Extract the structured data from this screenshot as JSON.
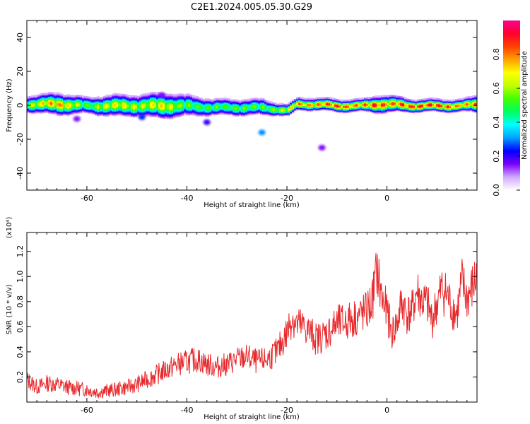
{
  "title": "C2E1.2024.005.05.30.G29",
  "colorbar": {
    "label": "Normalized spectral amplitude",
    "range": [
      0,
      1
    ],
    "ticks": [
      "0.0",
      "0.2",
      "0.4",
      "0.6",
      "0.8"
    ],
    "tick_values": [
      0.0,
      0.2,
      0.4,
      0.6,
      0.8
    ],
    "colors": [
      "#ffffff",
      "#d0a8ff",
      "#7a00ff",
      "#0000ff",
      "#00a0ff",
      "#00ffff",
      "#00ff60",
      "#40ff00",
      "#c0ff00",
      "#ffff00",
      "#ffa000",
      "#ff4000",
      "#ff0030",
      "#ff0090"
    ]
  },
  "chart_data": [
    {
      "type": "heatmap",
      "title": "C2E1.2024.005.05.30.G29",
      "xlabel": "Height of straight line (km)",
      "ylabel": "Frequency (Hz)",
      "xlim": [
        -72,
        18
      ],
      "ylim": [
        -50,
        50
      ],
      "x_ticks": [
        -60,
        -40,
        -20,
        0
      ],
      "x_tick_labels": [
        "-60",
        "-40",
        "-20",
        "0"
      ],
      "y_ticks": [
        -40,
        -20,
        0,
        20,
        40
      ],
      "y_tick_labels": [
        "-40",
        "-20",
        "0",
        "20",
        "40"
      ],
      "ridge": {
        "description_values": "center frequency (Hz) of dominant band vs height (km)",
        "x": [
          -72,
          -66,
          -60,
          -55,
          -50,
          -45,
          -40,
          -35,
          -30,
          -25,
          -22,
          -20,
          -18,
          -15,
          -10,
          -5,
          -2,
          0,
          5,
          10,
          15,
          18
        ],
        "center_hz": [
          1,
          1,
          0,
          0,
          0,
          0,
          0,
          -1,
          -1,
          -1,
          -2,
          -3,
          1,
          1,
          0,
          0,
          1,
          1,
          0,
          0,
          0,
          1
        ],
        "half_width_hz": [
          3,
          4,
          3,
          4,
          4,
          5,
          4,
          3,
          3,
          3,
          2,
          2,
          2,
          2,
          2,
          2,
          3,
          3,
          2,
          2,
          2,
          3
        ],
        "peak_amplitude": [
          0.7,
          0.9,
          0.6,
          0.8,
          0.7,
          0.8,
          0.6,
          0.6,
          0.6,
          0.6,
          0.7,
          0.8,
          0.9,
          0.9,
          1.0,
          0.9,
          1.0,
          0.9,
          1.0,
          1.0,
          0.9,
          0.9
        ]
      },
      "blobs": [
        {
          "x": -25,
          "y": -16,
          "amp": 0.3
        },
        {
          "x": -49,
          "y": -7,
          "amp": 0.25
        },
        {
          "x": -36,
          "y": -10,
          "amp": 0.2
        },
        {
          "x": -13,
          "y": -25,
          "amp": 0.15
        },
        {
          "x": -62,
          "y": -8,
          "amp": 0.15
        },
        {
          "x": -45,
          "y": 6,
          "amp": 0.15
        }
      ]
    },
    {
      "type": "line",
      "xlabel": "Height of straight line (km)",
      "ylabel": "SNR (10 * v/v)",
      "y_multiplier_label": "(x10⁴)",
      "xlim": [
        -72,
        18
      ],
      "ylim": [
        0,
        1.35
      ],
      "x_ticks": [
        -60,
        -40,
        -20,
        0
      ],
      "x_tick_labels": [
        "-60",
        "-40",
        "-20",
        "0"
      ],
      "y_ticks": [
        0.2,
        0.4,
        0.6,
        0.8,
        1.0,
        1.2
      ],
      "y_tick_labels": [
        "0.2",
        "0.4",
        "0.6",
        "0.8",
        "1.0",
        "1.2"
      ],
      "series": [
        {
          "color": "#e8292c",
          "x": [
            -72,
            -70,
            -68,
            -66,
            -64,
            -62,
            -60,
            -58,
            -56,
            -54,
            -52,
            -50,
            -48,
            -46,
            -44,
            -42,
            -40,
            -38,
            -36,
            -34,
            -32,
            -30,
            -28,
            -26,
            -24,
            -22,
            -20,
            -19,
            -18,
            -16,
            -14,
            -12,
            -10,
            -8,
            -6,
            -4,
            -3,
            -2,
            -1,
            0,
            1,
            2,
            3,
            4,
            5,
            6,
            7,
            8,
            9,
            10,
            11,
            12,
            13,
            14,
            15,
            16,
            17,
            18
          ],
          "y": [
            0.18,
            0.12,
            0.15,
            0.14,
            0.12,
            0.11,
            0.1,
            0.08,
            0.09,
            0.1,
            0.12,
            0.14,
            0.18,
            0.22,
            0.26,
            0.3,
            0.32,
            0.34,
            0.3,
            0.28,
            0.3,
            0.34,
            0.36,
            0.32,
            0.34,
            0.4,
            0.55,
            0.68,
            0.62,
            0.58,
            0.5,
            0.55,
            0.62,
            0.64,
            0.68,
            0.72,
            0.8,
            1.05,
            0.82,
            0.72,
            0.55,
            0.62,
            0.8,
            0.7,
            0.72,
            0.88,
            0.8,
            0.78,
            0.65,
            0.78,
            0.9,
            0.85,
            0.75,
            0.7,
            0.95,
            0.82,
            0.9,
            1.0
          ]
        }
      ]
    }
  ]
}
